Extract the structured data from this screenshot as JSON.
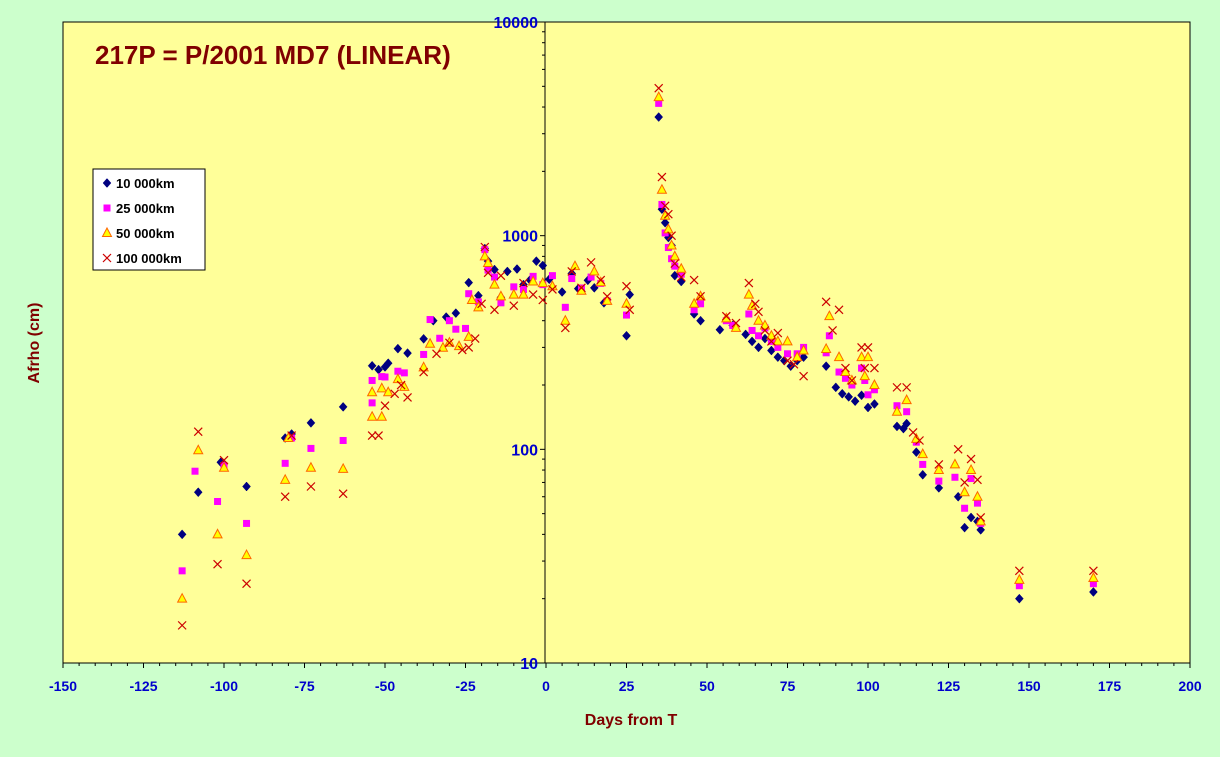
{
  "chart_data": {
    "type": "scatter",
    "title": "217P = P/2001 MD7 (LINEAR)",
    "xlabel": "Days from T",
    "ylabel": "Afrho (cm)",
    "xlim": [
      -150,
      200
    ],
    "ylim": [
      10,
      10000
    ],
    "y_scale": "log",
    "x_ticks": [
      "-150",
      "-125",
      "-100",
      "-75",
      "-50",
      "-25",
      "0",
      "25",
      "50",
      "75",
      "100",
      "125",
      "150",
      "175",
      "200"
    ],
    "y_ticks": [
      "10",
      "100",
      "1000",
      "10000"
    ],
    "grid": false,
    "legend_position": "top-left",
    "colors": {
      "background": "#ccffcc",
      "plot_area": "#ffff99",
      "title": "#800000",
      "axis_label": "#800000",
      "tick_label": "#0000cc"
    },
    "series": [
      {
        "name": "10 000km",
        "marker": "diamond",
        "color": "#000080",
        "points": [
          [
            -113,
            40
          ],
          [
            -108,
            63
          ],
          [
            -101,
            87
          ],
          [
            -93,
            67
          ],
          [
            -81,
            113
          ],
          [
            -79,
            118
          ],
          [
            -73,
            133
          ],
          [
            -63,
            158
          ],
          [
            -54,
            246
          ],
          [
            -52,
            236
          ],
          [
            -50,
            243
          ],
          [
            -49,
            253
          ],
          [
            -46,
            296
          ],
          [
            -43,
            282
          ],
          [
            -38,
            329
          ],
          [
            -35,
            400
          ],
          [
            -31,
            416
          ],
          [
            -28,
            434
          ],
          [
            -24,
            603
          ],
          [
            -21,
            524
          ],
          [
            -19,
            870
          ],
          [
            -18,
            760
          ],
          [
            -16,
            694
          ],
          [
            -14,
            514
          ],
          [
            -12,
            680
          ],
          [
            -9,
            698
          ],
          [
            -7,
            590
          ],
          [
            -5,
            620
          ],
          [
            -3,
            760
          ],
          [
            -1,
            725
          ],
          [
            1,
            625
          ],
          [
            5,
            545
          ],
          [
            8,
            665
          ],
          [
            10,
            565
          ],
          [
            13,
            618
          ],
          [
            15,
            570
          ],
          [
            18,
            485
          ],
          [
            25,
            340
          ],
          [
            26,
            530
          ],
          [
            35,
            3590
          ],
          [
            36,
            1330
          ],
          [
            37,
            1150
          ],
          [
            38,
            980
          ],
          [
            39,
            900
          ],
          [
            40,
            650
          ],
          [
            42,
            610
          ],
          [
            46,
            430
          ],
          [
            48,
            400
          ],
          [
            54,
            363
          ],
          [
            58,
            380
          ],
          [
            62,
            345
          ],
          [
            64,
            320
          ],
          [
            66,
            300
          ],
          [
            68,
            330
          ],
          [
            70,
            290
          ],
          [
            72,
            270
          ],
          [
            74,
            260
          ],
          [
            76,
            245
          ],
          [
            78,
            260
          ],
          [
            80,
            270
          ],
          [
            87,
            245
          ],
          [
            90,
            195
          ],
          [
            92,
            182
          ],
          [
            94,
            176
          ],
          [
            96,
            168
          ],
          [
            98,
            179
          ],
          [
            100,
            157
          ],
          [
            102,
            163
          ],
          [
            109,
            128
          ],
          [
            111,
            125
          ],
          [
            112,
            132
          ],
          [
            115,
            97
          ],
          [
            117,
            76
          ],
          [
            122,
            66
          ],
          [
            128,
            60
          ],
          [
            130,
            43
          ],
          [
            132,
            48
          ],
          [
            134,
            46
          ],
          [
            135,
            42
          ],
          [
            147,
            20
          ],
          [
            170,
            21.5
          ]
        ]
      },
      {
        "name": "25 000km",
        "marker": "square",
        "color": "#ff00ff",
        "points": [
          [
            -113,
            27
          ],
          [
            -109,
            79
          ],
          [
            -102,
            57
          ],
          [
            -100,
            84
          ],
          [
            -93,
            45
          ],
          [
            -81,
            86
          ],
          [
            -79,
            113
          ],
          [
            -73,
            101
          ],
          [
            -63,
            110
          ],
          [
            -54,
            210
          ],
          [
            -54,
            165
          ],
          [
            -51,
            219
          ],
          [
            -50,
            218
          ],
          [
            -46,
            232
          ],
          [
            -44,
            228
          ],
          [
            -38,
            278
          ],
          [
            -36,
            405
          ],
          [
            -33,
            331
          ],
          [
            -30,
            400
          ],
          [
            -28,
            365
          ],
          [
            -25,
            368
          ],
          [
            -24,
            535
          ],
          [
            -21,
            490
          ],
          [
            -19,
            860
          ],
          [
            -18,
            690
          ],
          [
            -16,
            640
          ],
          [
            -14,
            485
          ],
          [
            -10,
            576
          ],
          [
            -7,
            560
          ],
          [
            -4,
            645
          ],
          [
            -1,
            590
          ],
          [
            2,
            650
          ],
          [
            6,
            462
          ],
          [
            8,
            630
          ],
          [
            11,
            569
          ],
          [
            14,
            640
          ],
          [
            17,
            598
          ],
          [
            19,
            495
          ],
          [
            25,
            425
          ],
          [
            35,
            4160
          ],
          [
            36,
            1400
          ],
          [
            37,
            1030
          ],
          [
            38,
            880
          ],
          [
            39,
            780
          ],
          [
            40,
            720
          ],
          [
            42,
            660
          ],
          [
            46,
            450
          ],
          [
            48,
            480
          ],
          [
            56,
            400
          ],
          [
            58,
            380
          ],
          [
            63,
            430
          ],
          [
            64,
            360
          ],
          [
            66,
            340
          ],
          [
            68,
            370
          ],
          [
            70,
            320
          ],
          [
            72,
            300
          ],
          [
            75,
            280
          ],
          [
            78,
            280
          ],
          [
            80,
            300
          ],
          [
            87,
            283
          ],
          [
            88,
            340
          ],
          [
            91,
            230
          ],
          [
            93,
            215
          ],
          [
            95,
            200
          ],
          [
            98,
            240
          ],
          [
            99,
            210
          ],
          [
            100,
            180
          ],
          [
            102,
            190
          ],
          [
            109,
            160
          ],
          [
            112,
            150
          ],
          [
            115,
            108
          ],
          [
            117,
            85
          ],
          [
            122,
            71
          ],
          [
            127,
            74
          ],
          [
            130,
            53
          ],
          [
            132,
            73
          ],
          [
            134,
            56
          ],
          [
            135,
            45
          ],
          [
            147,
            23
          ],
          [
            170,
            23.5
          ]
        ]
      },
      {
        "name": "50 000km",
        "marker": "triangle",
        "color": "#ff6600",
        "points": [
          [
            -113,
            20
          ],
          [
            -108,
            99
          ],
          [
            -102,
            40
          ],
          [
            -100,
            82
          ],
          [
            -93,
            32
          ],
          [
            -81,
            72
          ],
          [
            -80,
            113
          ],
          [
            -73,
            82
          ],
          [
            -63,
            81
          ],
          [
            -54,
            185
          ],
          [
            -54,
            142
          ],
          [
            -51,
            193
          ],
          [
            -51,
            142
          ],
          [
            -49,
            185
          ],
          [
            -46,
            213
          ],
          [
            -44,
            196
          ],
          [
            -38,
            242
          ],
          [
            -36,
            312
          ],
          [
            -32,
            299
          ],
          [
            -30,
            316
          ],
          [
            -27,
            304
          ],
          [
            -24,
            336
          ],
          [
            -23,
            500
          ],
          [
            -21,
            462
          ],
          [
            -19,
            800
          ],
          [
            -18,
            745
          ],
          [
            -16,
            590
          ],
          [
            -14,
            520
          ],
          [
            -10,
            530
          ],
          [
            -7,
            530
          ],
          [
            -4,
            610
          ],
          [
            -1,
            600
          ],
          [
            2,
            580
          ],
          [
            6,
            400
          ],
          [
            9,
            720
          ],
          [
            11,
            552
          ],
          [
            15,
            680
          ],
          [
            17,
            605
          ],
          [
            19,
            495
          ],
          [
            25,
            480
          ],
          [
            35,
            4450
          ],
          [
            36,
            1640
          ],
          [
            37,
            1240
          ],
          [
            38,
            1070
          ],
          [
            39,
            900
          ],
          [
            40,
            800
          ],
          [
            42,
            700
          ],
          [
            46,
            480
          ],
          [
            48,
            520
          ],
          [
            56,
            410
          ],
          [
            59,
            370
          ],
          [
            63,
            530
          ],
          [
            64,
            470
          ],
          [
            66,
            400
          ],
          [
            68,
            380
          ],
          [
            70,
            340
          ],
          [
            72,
            320
          ],
          [
            75,
            320
          ],
          [
            78,
            270
          ],
          [
            80,
            290
          ],
          [
            87,
            295
          ],
          [
            88,
            420
          ],
          [
            91,
            270
          ],
          [
            93,
            230
          ],
          [
            95,
            210
          ],
          [
            98,
            270
          ],
          [
            99,
            220
          ],
          [
            100,
            270
          ],
          [
            102,
            200
          ],
          [
            109,
            150
          ],
          [
            112,
            170
          ],
          [
            115,
            112
          ],
          [
            117,
            95
          ],
          [
            122,
            80
          ],
          [
            127,
            85
          ],
          [
            130,
            63
          ],
          [
            132,
            80
          ],
          [
            134,
            60
          ],
          [
            135,
            46
          ],
          [
            147,
            24.5
          ],
          [
            170,
            25
          ]
        ]
      },
      {
        "name": "100 000km",
        "marker": "x",
        "color": "#cc0000",
        "points": [
          [
            -113,
            15
          ],
          [
            -108,
            121
          ],
          [
            -102,
            29
          ],
          [
            -100,
            89
          ],
          [
            -93,
            23.5
          ],
          [
            -81,
            60
          ],
          [
            -79,
            116
          ],
          [
            -73,
            67
          ],
          [
            -63,
            62
          ],
          [
            -54,
            116
          ],
          [
            -52,
            116
          ],
          [
            -50,
            160
          ],
          [
            -47,
            182
          ],
          [
            -45,
            200
          ],
          [
            -43,
            175
          ],
          [
            -38,
            230
          ],
          [
            -34,
            280
          ],
          [
            -30,
            315
          ],
          [
            -26,
            292
          ],
          [
            -24,
            300
          ],
          [
            -22,
            330
          ],
          [
            -20,
            480
          ],
          [
            -19,
            885
          ],
          [
            -18,
            670
          ],
          [
            -16,
            450
          ],
          [
            -14,
            650
          ],
          [
            -10,
            470
          ],
          [
            -7,
            600
          ],
          [
            -4,
            530
          ],
          [
            -1,
            500
          ],
          [
            2,
            560
          ],
          [
            6,
            370
          ],
          [
            8,
            680
          ],
          [
            11,
            570
          ],
          [
            14,
            750
          ],
          [
            17,
            620
          ],
          [
            19,
            520
          ],
          [
            25,
            580
          ],
          [
            26,
            450
          ],
          [
            35,
            4900
          ],
          [
            36,
            1880
          ],
          [
            37,
            1380
          ],
          [
            38,
            1260
          ],
          [
            39,
            1000
          ],
          [
            40,
            740
          ],
          [
            42,
            640
          ],
          [
            46,
            620
          ],
          [
            48,
            520
          ],
          [
            56,
            420
          ],
          [
            59,
            390
          ],
          [
            63,
            600
          ],
          [
            65,
            480
          ],
          [
            66,
            440
          ],
          [
            68,
            360
          ],
          [
            70,
            320
          ],
          [
            72,
            350
          ],
          [
            75,
            260
          ],
          [
            77,
            250
          ],
          [
            80,
            220
          ],
          [
            87,
            490
          ],
          [
            89,
            360
          ],
          [
            91,
            450
          ],
          [
            93,
            240
          ],
          [
            95,
            210
          ],
          [
            98,
            300
          ],
          [
            99,
            240
          ],
          [
            100,
            300
          ],
          [
            102,
            240
          ],
          [
            109,
            195
          ],
          [
            112,
            195
          ],
          [
            114,
            120
          ],
          [
            116,
            110
          ],
          [
            122,
            85
          ],
          [
            128,
            100
          ],
          [
            130,
            70
          ],
          [
            132,
            90
          ],
          [
            134,
            72
          ],
          [
            135,
            48
          ],
          [
            147,
            27
          ],
          [
            170,
            27
          ]
        ]
      }
    ]
  }
}
